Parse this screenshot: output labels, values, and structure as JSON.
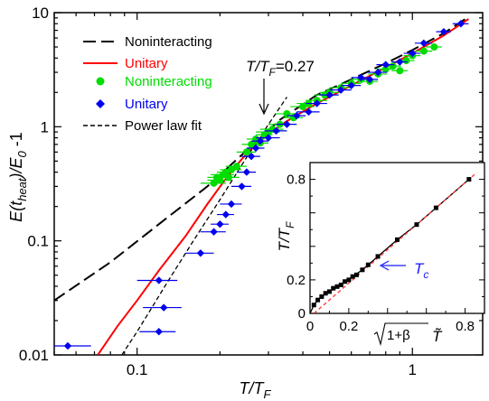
{
  "chart_data": [
    {
      "type": "scatter",
      "xlabel_main": "T/T",
      "xlabel_sub": "F",
      "ylabel_parts": [
        "E(t",
        "heat",
        ")/E",
        "0",
        " -1"
      ],
      "xscale": "log",
      "yscale": "log",
      "xlim": [
        0.05,
        1.8
      ],
      "ylim": [
        0.01,
        10
      ],
      "x_ticks": [
        {
          "v": 0.1,
          "label": "0.1"
        },
        {
          "v": 1,
          "label": "1"
        }
      ],
      "y_ticks": [
        {
          "v": 0.01,
          "label": "0.01"
        },
        {
          "v": 0.1,
          "label": "0.1"
        },
        {
          "v": 1,
          "label": "1"
        },
        {
          "v": 10,
          "label": "10"
        }
      ],
      "annotation": {
        "text_main": "T/T",
        "text_sub": "F",
        "text_value": "=0.27",
        "x": 0.27,
        "y": 1.15
      },
      "legend": {
        "placement": "top-left",
        "entries": [
          {
            "label": "Noninteracting",
            "color": "#000000",
            "style": "long-dash"
          },
          {
            "label": "Unitary",
            "color": "#ff0000",
            "style": "solid"
          },
          {
            "label": "Noninteracting",
            "color": "#00dd00",
            "style": "circle"
          },
          {
            "label": "Unitary",
            "color": "#0000ee",
            "style": "diamond"
          },
          {
            "label": "Power law fit",
            "color": "#000000",
            "style": "short-dash"
          }
        ]
      },
      "series": [
        {
          "name": "Noninteracting",
          "kind": "line",
          "color": "#000000",
          "dash": "long",
          "x": [
            0.05,
            0.08,
            0.12,
            0.18,
            0.25,
            0.33,
            0.45,
            0.6,
            0.8,
            1.0,
            1.3,
            1.6
          ],
          "y": [
            0.03,
            0.065,
            0.14,
            0.3,
            0.62,
            1.15,
            1.9,
            2.6,
            3.6,
            4.7,
            6.6,
            9.2
          ]
        },
        {
          "name": "Unitary",
          "kind": "line",
          "color": "#ff0000",
          "dash": "solid",
          "x": [
            0.072,
            0.085,
            0.1,
            0.12,
            0.15,
            0.18,
            0.21,
            0.24,
            0.27,
            0.3,
            0.35,
            0.45,
            0.6,
            0.8,
            1.0,
            1.3,
            1.6
          ],
          "y": [
            0.01,
            0.018,
            0.03,
            0.055,
            0.11,
            0.21,
            0.35,
            0.52,
            0.7,
            0.86,
            1.12,
            1.6,
            2.3,
            3.3,
            4.4,
            6.3,
            8.8
          ]
        },
        {
          "name": "Power law fit",
          "kind": "line",
          "color": "#000000",
          "dash": "short",
          "x": [
            0.088,
            0.1,
            0.13,
            0.16,
            0.2,
            0.25,
            0.3,
            0.35
          ],
          "y": [
            0.01,
            0.016,
            0.045,
            0.1,
            0.23,
            0.54,
            1.05,
            1.82
          ]
        },
        {
          "name": "Noninteracting",
          "kind": "circle",
          "color": "#00dd00",
          "x": [
            0.19,
            0.195,
            0.2,
            0.205,
            0.21,
            0.215,
            0.22,
            0.23,
            0.25,
            0.26,
            0.27,
            0.28,
            0.29,
            0.3,
            0.31,
            0.33,
            0.35,
            0.37,
            0.4,
            0.42,
            0.45,
            0.48,
            0.5,
            0.55,
            0.6,
            0.65,
            0.7,
            0.75,
            0.8,
            0.85,
            0.9,
            0.95,
            1.0,
            1.1,
            1.2
          ],
          "y": [
            0.32,
            0.36,
            0.34,
            0.38,
            0.4,
            0.36,
            0.42,
            0.45,
            0.6,
            0.7,
            0.78,
            0.72,
            0.85,
            0.9,
            0.95,
            1.05,
            1.3,
            1.2,
            1.5,
            1.6,
            1.7,
            1.9,
            2.0,
            2.2,
            2.4,
            2.6,
            2.5,
            2.9,
            3.2,
            3.4,
            3.1,
            3.8,
            4.2,
            4.6,
            5.0
          ],
          "xerr": [
            0.02,
            0.015,
            0.02,
            0.02,
            0.015,
            0.02,
            0.02,
            0.02,
            0.02,
            0.02,
            0.02,
            0.02,
            0.02,
            0.03,
            0.03,
            0.03,
            0.03,
            0.03,
            0.04,
            0.04,
            0.04,
            0.04,
            0.04,
            0.05,
            0.05,
            0.05,
            0.05,
            0.06,
            0.06,
            0.06,
            0.06,
            0.07,
            0.07,
            0.08,
            0.08
          ]
        },
        {
          "name": "Unitary",
          "kind": "diamond",
          "color": "#0000ee",
          "x": [
            0.056,
            0.12,
            0.125,
            0.12,
            0.17,
            0.19,
            0.2,
            0.21,
            0.22,
            0.24,
            0.25,
            0.26,
            0.27,
            0.28,
            0.3,
            0.32,
            0.35,
            0.38,
            0.42,
            0.45,
            0.5,
            0.55,
            0.6,
            0.65,
            0.7,
            0.75,
            0.8,
            0.9,
            1.0,
            1.1,
            1.3,
            1.5
          ],
          "y": [
            0.012,
            0.045,
            0.026,
            0.016,
            0.078,
            0.12,
            0.14,
            0.17,
            0.21,
            0.3,
            0.4,
            0.55,
            0.65,
            0.75,
            0.8,
            0.92,
            1.05,
            1.25,
            1.35,
            1.6,
            1.9,
            2.1,
            2.3,
            2.7,
            2.6,
            3.0,
            3.5,
            3.7,
            4.4,
            5.4,
            6.8,
            8.0
          ],
          "xerr": [
            0.012,
            0.02,
            0.02,
            0.018,
            0.02,
            0.02,
            0.015,
            0.015,
            0.02,
            0.02,
            0.02,
            0.02,
            0.02,
            0.02,
            0.03,
            0.03,
            0.03,
            0.03,
            0.04,
            0.04,
            0.04,
            0.05,
            0.05,
            0.05,
            0.05,
            0.06,
            0.06,
            0.06,
            0.07,
            0.08,
            0.08,
            0.1
          ]
        }
      ]
    },
    {
      "type": "line",
      "xlabel_radicand": "1+β",
      "xlabel_var": "T̃",
      "ylabel_main": "T/T",
      "ylabel_sub": "F",
      "xlim": [
        0,
        0.9
      ],
      "ylim": [
        0,
        0.9
      ],
      "x_ticks": [
        {
          "v": 0,
          "label": "0"
        },
        {
          "v": 0.2,
          "label": "0.2"
        },
        {
          "v": 0.8,
          "label": "0.8"
        }
      ],
      "y_ticks": [
        {
          "v": 0,
          "label": "0"
        },
        {
          "v": 0.2,
          "label": "0.2"
        },
        {
          "v": 0.8,
          "label": "0.8"
        }
      ],
      "annotation": {
        "label": "T",
        "sub": "c",
        "color": "#1a1aff",
        "x": 0.29,
        "y": 0.29
      },
      "series": [
        {
          "name": "",
          "kind": "points",
          "color": "#000000",
          "x": [
            0.02,
            0.04,
            0.06,
            0.08,
            0.1,
            0.12,
            0.14,
            0.16,
            0.18,
            0.2,
            0.22,
            0.24,
            0.27,
            0.3,
            0.35,
            0.45,
            0.55,
            0.65,
            0.82
          ],
          "y": [
            0.05,
            0.08,
            0.1,
            0.12,
            0.13,
            0.15,
            0.16,
            0.17,
            0.19,
            0.2,
            0.22,
            0.23,
            0.26,
            0.29,
            0.34,
            0.44,
            0.53,
            0.63,
            0.8
          ]
        },
        {
          "name": "",
          "kind": "line",
          "color": "#000000",
          "dash": "solid",
          "x": [
            0.0,
            0.02,
            0.04,
            0.06,
            0.1,
            0.14,
            0.18,
            0.22,
            0.27,
            0.35,
            0.45,
            0.55,
            0.65,
            0.82
          ],
          "y": [
            0.0,
            0.05,
            0.08,
            0.1,
            0.13,
            0.16,
            0.19,
            0.22,
            0.26,
            0.34,
            0.44,
            0.53,
            0.63,
            0.8
          ]
        },
        {
          "name": "",
          "kind": "line",
          "color": "#ff3333",
          "dash": "short",
          "x": [
            0.02,
            0.86
          ],
          "y": [
            0.0,
            0.84
          ]
        }
      ]
    }
  ]
}
